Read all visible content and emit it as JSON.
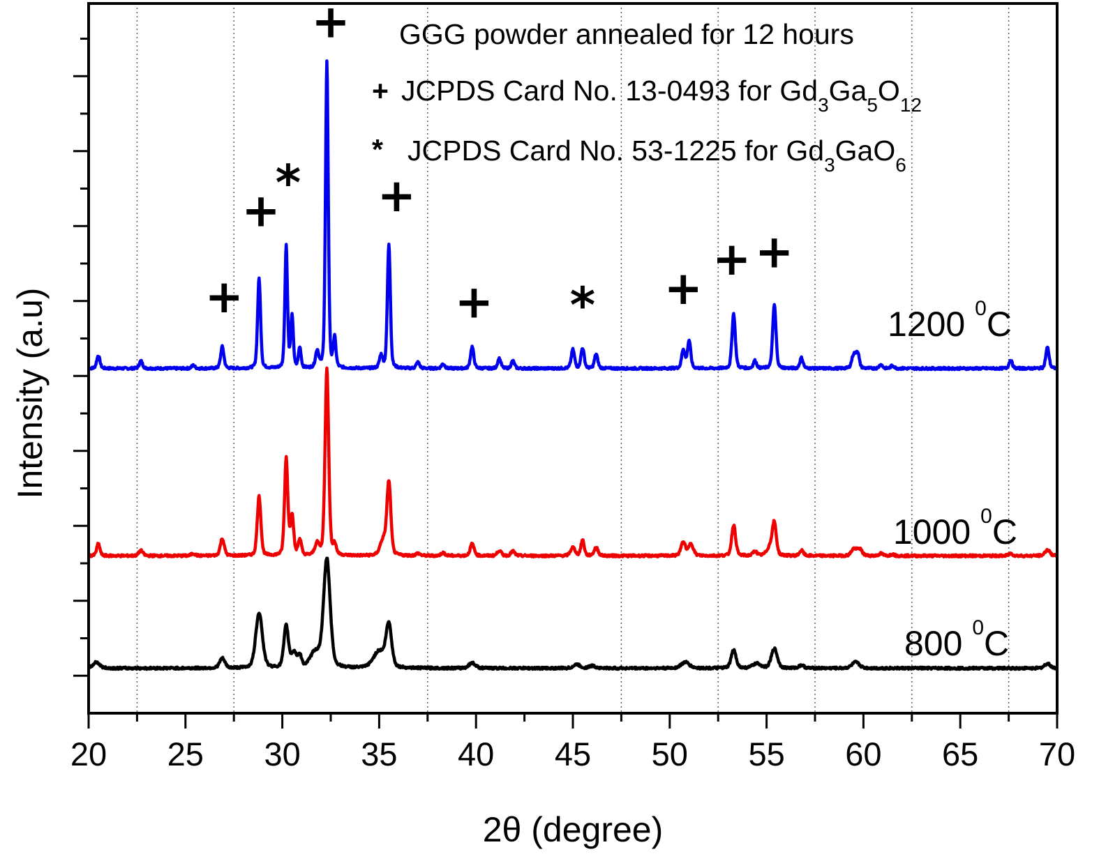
{
  "chart_data": {
    "type": "line",
    "title": "",
    "xlabel": "2θ (degree)",
    "ylabel": "Intensity (a.u)",
    "xlim": [
      20,
      70
    ],
    "ylim": [
      0,
      9.47
    ],
    "x_major_ticks": [
      20,
      25,
      30,
      35,
      40,
      45,
      50,
      55,
      60,
      65,
      70
    ],
    "x_tick_labels": [
      "20",
      "25",
      "30",
      "35",
      "40",
      "45",
      "50",
      "55",
      "60",
      "65",
      "70"
    ],
    "x_minor_ticks": [
      22.5,
      27.5,
      32.5,
      37.5,
      42.5,
      47.5,
      52.5,
      57.5,
      62.5,
      67.5
    ],
    "vertical_dotted_grid": [
      22.5,
      27.5,
      37.5,
      47.5,
      52.5,
      57.5,
      62.5,
      67.5
    ],
    "y_major_ticks": [
      0.5,
      1.5,
      2.5,
      3.5,
      4.5,
      5.5,
      6.5,
      7.5,
      8.5
    ],
    "y_minor_ticks": [
      1.0,
      2.0,
      3.0,
      4.0,
      5.0,
      6.0,
      7.0,
      8.0,
      9.0
    ],
    "y_tick_labels_shown": false,
    "legend": "none",
    "annotations": {
      "heading": "GGG powder annealed for 12 hours",
      "plus_legend": {
        "symbol": "+",
        "text": "JCPDS Card No. 13-0493 for Gd",
        "formula": [
          [
            "Gd",
            ""
          ],
          [
            "3",
            "sub"
          ],
          [
            "Ga",
            ""
          ],
          [
            "5",
            "sub"
          ],
          [
            "O",
            ""
          ],
          [
            "12",
            "sub"
          ]
        ],
        "prefix": "JCPDS Card No. 13-0493 for "
      },
      "star_legend": {
        "symbol": "*",
        "prefix": "JCPDS Card No. 53-1225 for ",
        "formula": [
          [
            "Gd",
            ""
          ],
          [
            "3",
            "sub"
          ],
          [
            "GaO",
            ""
          ],
          [
            "6",
            "sub"
          ]
        ]
      }
    },
    "peak_markers": [
      {
        "symbol": "+",
        "x": 27.0,
        "y": 5.35
      },
      {
        "symbol": "+",
        "x": 28.9,
        "y": 6.5
      },
      {
        "symbol": "*",
        "x": 30.3,
        "y": 6.85
      },
      {
        "symbol": "+",
        "x": 32.5,
        "y": 9.02
      },
      {
        "symbol": "+",
        "x": 35.9,
        "y": 6.7
      },
      {
        "symbol": "+",
        "x": 39.9,
        "y": 5.28
      },
      {
        "symbol": "*",
        "x": 45.5,
        "y": 5.22
      },
      {
        "symbol": "+",
        "x": 50.7,
        "y": 5.46
      },
      {
        "symbol": "+",
        "x": 53.2,
        "y": 5.85
      },
      {
        "symbol": "+",
        "x": 55.4,
        "y": 5.95
      }
    ],
    "series": [
      {
        "name": "1200 °C",
        "label_main": "1200 ",
        "label_sup": "0",
        "label_unit": "C",
        "color": "#0000ee",
        "baseline": 4.6,
        "peaks": [
          {
            "x": 20.5,
            "h": 0.17,
            "w": 0.1
          },
          {
            "x": 22.7,
            "h": 0.1,
            "w": 0.1
          },
          {
            "x": 25.4,
            "h": 0.04,
            "w": 0.1
          },
          {
            "x": 26.9,
            "h": 0.29,
            "w": 0.1
          },
          {
            "x": 28.8,
            "h": 1.2,
            "w": 0.09
          },
          {
            "x": 30.2,
            "h": 1.63,
            "w": 0.08
          },
          {
            "x": 30.5,
            "h": 0.68,
            "w": 0.08
          },
          {
            "x": 30.9,
            "h": 0.27,
            "w": 0.08
          },
          {
            "x": 31.8,
            "h": 0.22,
            "w": 0.1
          },
          {
            "x": 32.3,
            "h": 4.08,
            "w": 0.085
          },
          {
            "x": 32.7,
            "h": 0.39,
            "w": 0.08
          },
          {
            "x": 35.1,
            "h": 0.17,
            "w": 0.1
          },
          {
            "x": 35.5,
            "h": 1.66,
            "w": 0.09
          },
          {
            "x": 37.0,
            "h": 0.08,
            "w": 0.1
          },
          {
            "x": 38.3,
            "h": 0.06,
            "w": 0.1
          },
          {
            "x": 39.8,
            "h": 0.29,
            "w": 0.1
          },
          {
            "x": 41.2,
            "h": 0.13,
            "w": 0.1
          },
          {
            "x": 41.9,
            "h": 0.1,
            "w": 0.1
          },
          {
            "x": 45.0,
            "h": 0.25,
            "w": 0.1
          },
          {
            "x": 45.5,
            "h": 0.27,
            "w": 0.1
          },
          {
            "x": 46.2,
            "h": 0.19,
            "w": 0.1
          },
          {
            "x": 50.7,
            "h": 0.25,
            "w": 0.1
          },
          {
            "x": 51.0,
            "h": 0.37,
            "w": 0.1
          },
          {
            "x": 53.3,
            "h": 0.73,
            "w": 0.1
          },
          {
            "x": 54.4,
            "h": 0.1,
            "w": 0.1
          },
          {
            "x": 55.4,
            "h": 0.85,
            "w": 0.1
          },
          {
            "x": 56.8,
            "h": 0.14,
            "w": 0.1
          },
          {
            "x": 59.5,
            "h": 0.18,
            "w": 0.12
          },
          {
            "x": 59.7,
            "h": 0.2,
            "w": 0.1
          },
          {
            "x": 60.9,
            "h": 0.05,
            "w": 0.1
          },
          {
            "x": 61.5,
            "h": 0.04,
            "w": 0.1
          },
          {
            "x": 67.6,
            "h": 0.11,
            "w": 0.1
          },
          {
            "x": 69.5,
            "h": 0.28,
            "w": 0.1
          }
        ]
      },
      {
        "name": "1000 °C",
        "label_main": "1000 ",
        "label_sup": "0",
        "label_unit": "C",
        "color": "#ee0000",
        "baseline": 2.1,
        "peaks": [
          {
            "x": 20.5,
            "h": 0.16,
            "w": 0.1
          },
          {
            "x": 22.7,
            "h": 0.07,
            "w": 0.12
          },
          {
            "x": 25.4,
            "h": 0.03,
            "w": 0.12
          },
          {
            "x": 26.9,
            "h": 0.23,
            "w": 0.12
          },
          {
            "x": 28.8,
            "h": 0.79,
            "w": 0.11
          },
          {
            "x": 30.2,
            "h": 1.3,
            "w": 0.1
          },
          {
            "x": 30.5,
            "h": 0.53,
            "w": 0.1
          },
          {
            "x": 30.9,
            "h": 0.21,
            "w": 0.1
          },
          {
            "x": 31.8,
            "h": 0.15,
            "w": 0.14
          },
          {
            "x": 32.3,
            "h": 2.51,
            "w": 0.11
          },
          {
            "x": 32.7,
            "h": 0.14,
            "w": 0.1
          },
          {
            "x": 35.2,
            "h": 0.2,
            "w": 0.18
          },
          {
            "x": 35.5,
            "h": 0.97,
            "w": 0.12
          },
          {
            "x": 37.0,
            "h": 0.03,
            "w": 0.12
          },
          {
            "x": 38.3,
            "h": 0.04,
            "w": 0.12
          },
          {
            "x": 39.8,
            "h": 0.16,
            "w": 0.12
          },
          {
            "x": 41.2,
            "h": 0.07,
            "w": 0.12
          },
          {
            "x": 41.9,
            "h": 0.06,
            "w": 0.12
          },
          {
            "x": 45.0,
            "h": 0.11,
            "w": 0.14
          },
          {
            "x": 45.5,
            "h": 0.21,
            "w": 0.1
          },
          {
            "x": 46.2,
            "h": 0.11,
            "w": 0.12
          },
          {
            "x": 50.7,
            "h": 0.18,
            "w": 0.14
          },
          {
            "x": 51.1,
            "h": 0.16,
            "w": 0.14
          },
          {
            "x": 53.3,
            "h": 0.41,
            "w": 0.12
          },
          {
            "x": 54.4,
            "h": 0.06,
            "w": 0.12
          },
          {
            "x": 55.2,
            "h": 0.12,
            "w": 0.2
          },
          {
            "x": 55.4,
            "h": 0.4,
            "w": 0.12
          },
          {
            "x": 56.8,
            "h": 0.07,
            "w": 0.12
          },
          {
            "x": 59.5,
            "h": 0.09,
            "w": 0.15
          },
          {
            "x": 59.8,
            "h": 0.09,
            "w": 0.15
          },
          {
            "x": 60.9,
            "h": 0.03,
            "w": 0.12
          },
          {
            "x": 61.5,
            "h": 0.02,
            "w": 0.12
          },
          {
            "x": 67.6,
            "h": 0.03,
            "w": 0.12
          },
          {
            "x": 69.5,
            "h": 0.08,
            "w": 0.15
          }
        ]
      },
      {
        "name": "800 °C",
        "label_main": "800 ",
        "label_sup": "0",
        "label_unit": "C",
        "color": "#000000",
        "baseline": 0.6,
        "peaks": [
          {
            "x": 20.4,
            "h": 0.08,
            "w": 0.2
          },
          {
            "x": 26.9,
            "h": 0.13,
            "w": 0.16
          },
          {
            "x": 28.8,
            "h": 0.74,
            "w": 0.2
          },
          {
            "x": 30.2,
            "h": 0.56,
            "w": 0.14
          },
          {
            "x": 30.6,
            "h": 0.2,
            "w": 0.15
          },
          {
            "x": 30.9,
            "h": 0.15,
            "w": 0.12
          },
          {
            "x": 32.3,
            "h": 1.45,
            "w": 0.2
          },
          {
            "x": 31.7,
            "h": 0.2,
            "w": 0.3
          },
          {
            "x": 35.0,
            "h": 0.22,
            "w": 0.35
          },
          {
            "x": 35.5,
            "h": 0.56,
            "w": 0.17
          },
          {
            "x": 39.8,
            "h": 0.07,
            "w": 0.2
          },
          {
            "x": 45.2,
            "h": 0.05,
            "w": 0.2
          },
          {
            "x": 46.0,
            "h": 0.03,
            "w": 0.2
          },
          {
            "x": 50.8,
            "h": 0.08,
            "w": 0.25
          },
          {
            "x": 53.3,
            "h": 0.24,
            "w": 0.15
          },
          {
            "x": 54.5,
            "h": 0.06,
            "w": 0.25
          },
          {
            "x": 55.4,
            "h": 0.26,
            "w": 0.18
          },
          {
            "x": 56.8,
            "h": 0.04,
            "w": 0.15
          },
          {
            "x": 59.6,
            "h": 0.08,
            "w": 0.22
          },
          {
            "x": 69.5,
            "h": 0.06,
            "w": 0.18
          }
        ]
      }
    ]
  }
}
